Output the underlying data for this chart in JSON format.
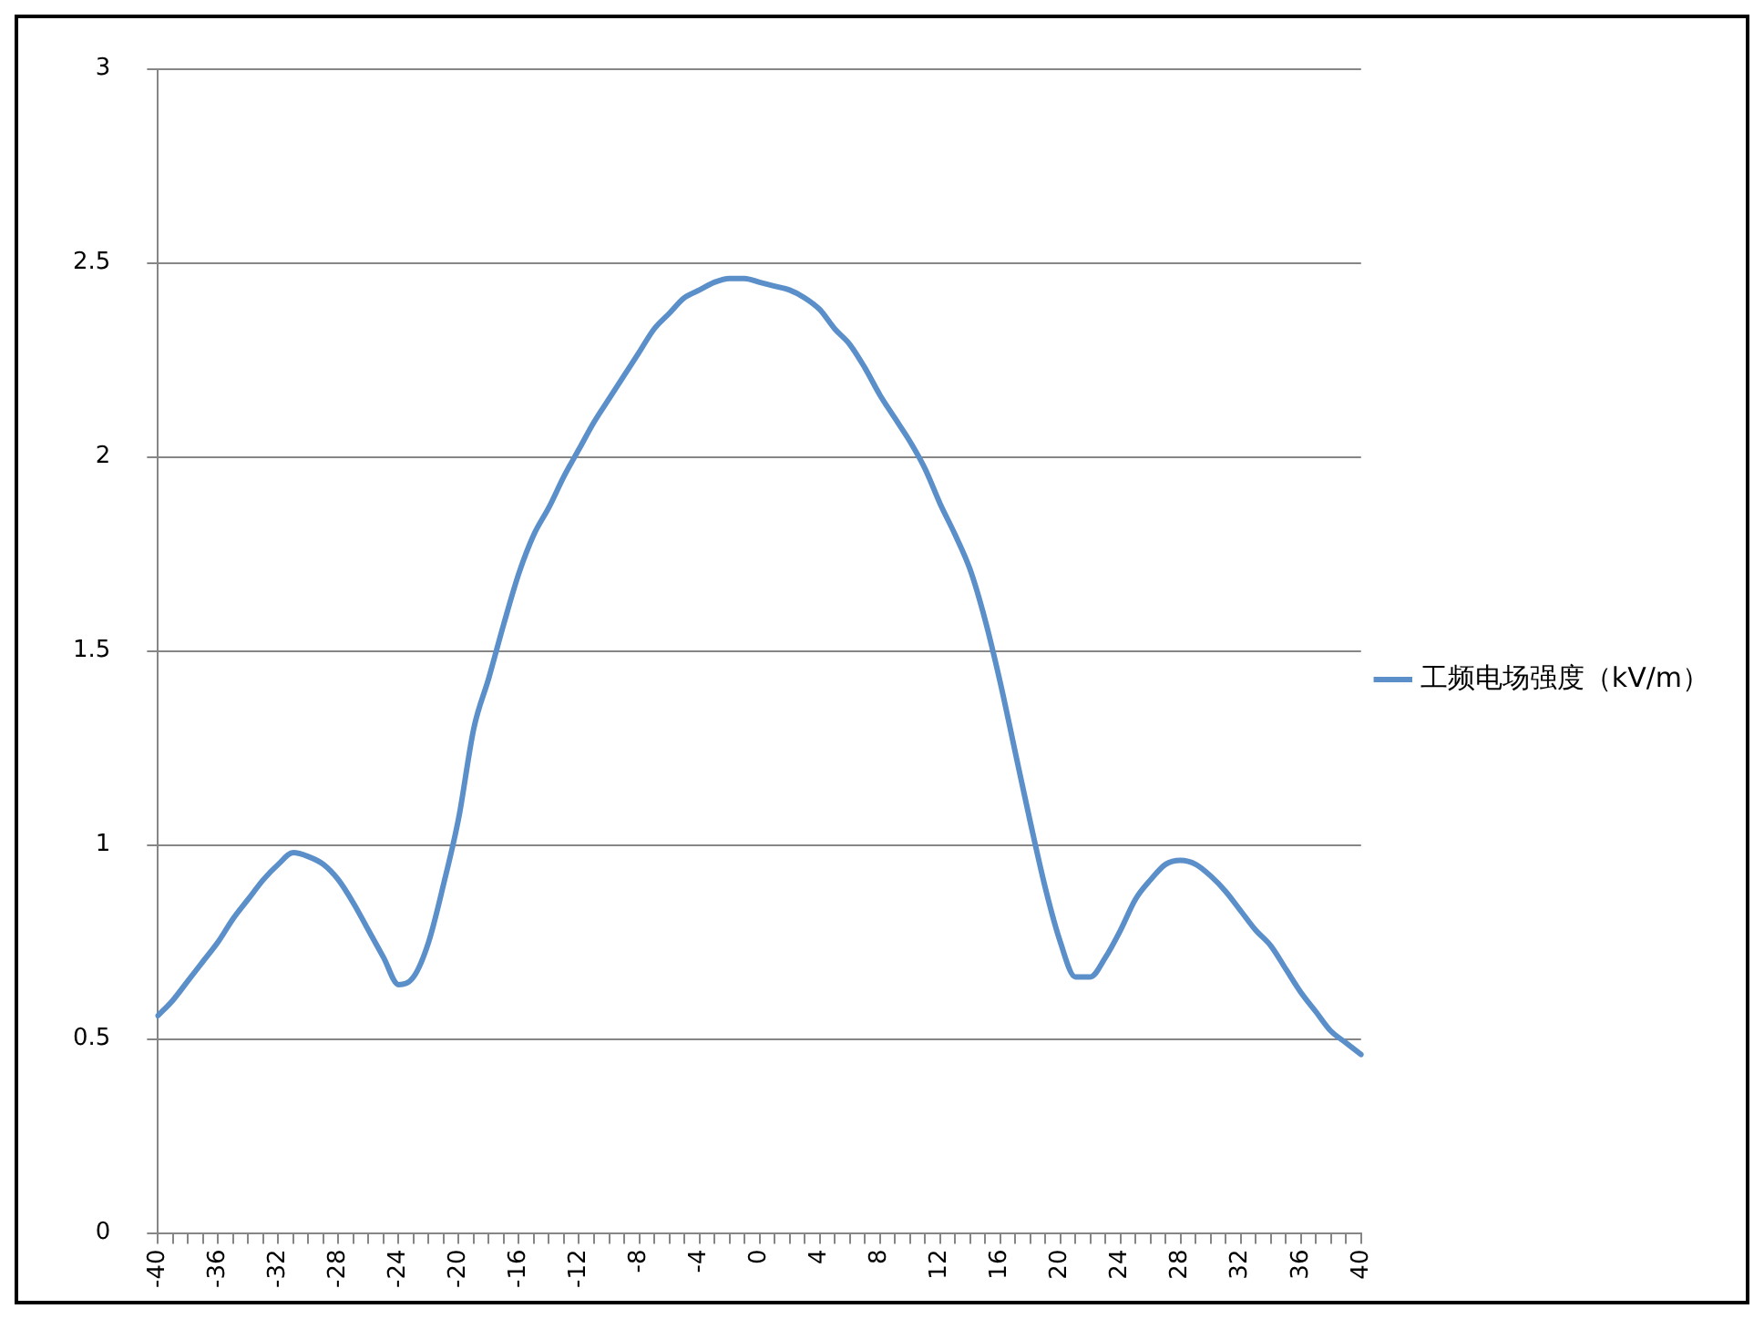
{
  "chart_data": {
    "type": "line",
    "categories": [
      "-40",
      null,
      null,
      null,
      "-36",
      null,
      null,
      null,
      "-32",
      null,
      null,
      null,
      "-28",
      null,
      null,
      null,
      "-24",
      null,
      null,
      null,
      "-20",
      null,
      null,
      null,
      "-16",
      null,
      null,
      null,
      "-12",
      null,
      null,
      null,
      "-8",
      null,
      null,
      null,
      "-4",
      null,
      null,
      null,
      "0",
      null,
      null,
      null,
      "4",
      null,
      null,
      null,
      "8",
      null,
      null,
      null,
      "12",
      null,
      null,
      null,
      "16",
      null,
      null,
      null,
      "20",
      null,
      null,
      null,
      "24",
      null,
      null,
      null,
      "28",
      null,
      null,
      null,
      "32",
      null,
      null,
      null,
      "36",
      null,
      null,
      null,
      "40"
    ],
    "series": [
      {
        "name": "工频电场强度（kV/m）",
        "color": "#5b8fc9",
        "values": [
          0.56,
          0.6,
          0.65,
          0.7,
          0.75,
          0.81,
          0.86,
          0.91,
          0.95,
          0.98,
          0.97,
          0.95,
          0.91,
          0.85,
          0.78,
          0.71,
          0.64,
          0.66,
          0.75,
          0.9,
          1.07,
          1.3,
          1.43,
          1.57,
          1.7,
          1.8,
          1.87,
          1.95,
          2.02,
          2.09,
          2.15,
          2.21,
          2.27,
          2.33,
          2.37,
          2.41,
          2.43,
          2.45,
          2.46,
          2.46,
          2.45,
          2.44,
          2.43,
          2.41,
          2.38,
          2.33,
          2.29,
          2.23,
          2.16,
          2.1,
          2.04,
          1.97,
          1.88,
          1.8,
          1.71,
          1.58,
          1.42,
          1.24,
          1.06,
          0.89,
          0.75,
          0.66,
          0.66,
          0.71,
          0.78,
          0.86,
          0.91,
          0.95,
          0.96,
          0.95,
          0.92,
          0.88,
          0.83,
          0.78,
          0.74,
          0.68,
          0.62,
          0.57,
          0.52,
          0.49,
          0.46
        ]
      }
    ],
    "ylim": [
      0,
      3
    ],
    "yticks": [
      0,
      0.5,
      1,
      1.5,
      2,
      2.5,
      3
    ],
    "grid": "y",
    "legend": "right",
    "marker": "none",
    "line_style": "solid"
  }
}
